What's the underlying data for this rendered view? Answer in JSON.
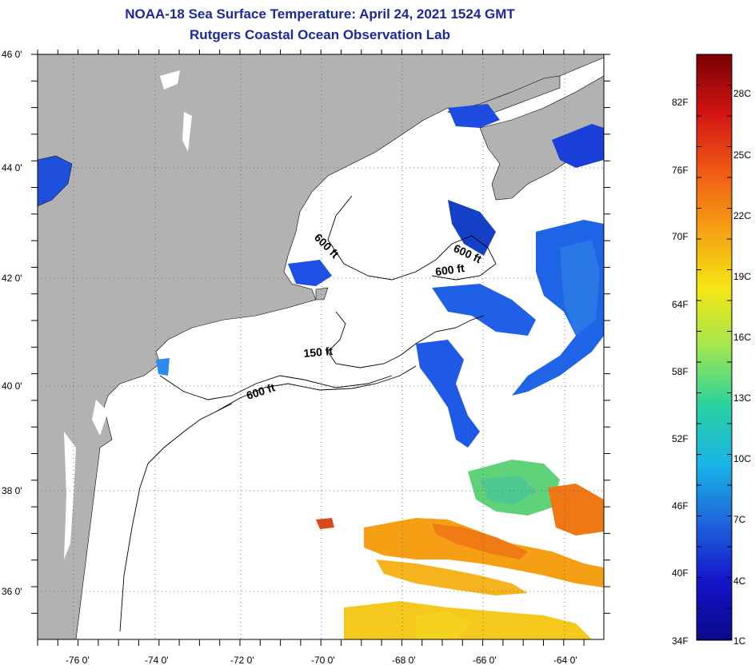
{
  "title": "NOAA-18 Sea Surface Temperature:  April 24, 2021 1524 GMT",
  "subtitle": "Rutgers Coastal Ocean Observation Lab",
  "map": {
    "lon_range": [
      -77,
      -63
    ],
    "lat_range": [
      35,
      46
    ],
    "lon_ticks": [
      "-76 0'",
      "-74 0'",
      "-72 0'",
      "-70 0'",
      "-68 0'",
      "-66 0'",
      "-64 0'"
    ],
    "lat_ticks": [
      "46 0'",
      "44 0'",
      "42 0'",
      "40 0'",
      "38 0'",
      "36 0'"
    ],
    "land_color": "#b2b2b2",
    "grid": "dotted",
    "contour_labels": [
      {
        "text": "600 ft",
        "lon": -70.4,
        "lat": 42.7
      },
      {
        "text": "600 ft",
        "lon": -66.1,
        "lat": 42.5
      },
      {
        "text": "600 ft",
        "lon": -66.7,
        "lat": 42.0
      },
      {
        "text": "150 ft",
        "lon": -69.2,
        "lat": 40.7
      },
      {
        "text": "600 ft",
        "lon": -71.2,
        "lat": 39.9
      }
    ]
  },
  "colorbar": {
    "fahrenheit_labels": [
      "82F",
      "76F",
      "70F",
      "64F",
      "58F",
      "52F",
      "46F",
      "40F",
      "34F"
    ],
    "celsius_labels": [
      "28C",
      "25C",
      "22C",
      "19C",
      "16C",
      "13C",
      "10C",
      "7C",
      "4C",
      "1C"
    ],
    "colors": [
      "#7a0000",
      "#d21414",
      "#f05a14",
      "#f5a014",
      "#f5e614",
      "#a0e650",
      "#28d2a0",
      "#19b4e6",
      "#1e64dc",
      "#1414c8",
      "#0a0a8c"
    ]
  }
}
